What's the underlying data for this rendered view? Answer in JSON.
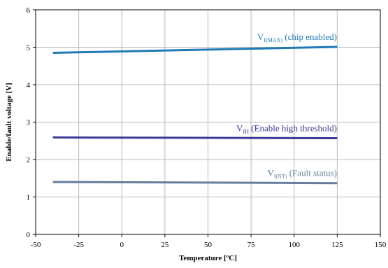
{
  "chart_data": {
    "type": "line",
    "title": "",
    "xlabel": "Temperature [ºC]",
    "ylabel": "Enable/fault voltage [V]",
    "xlim": [
      -50,
      150
    ],
    "ylim": [
      0,
      6
    ],
    "xticks": [
      -50,
      -25,
      0,
      25,
      50,
      75,
      100,
      125,
      150
    ],
    "yticks": [
      0,
      1,
      2,
      3,
      4,
      5,
      6
    ],
    "grid": true,
    "legend": "inline labels",
    "series": [
      {
        "name": "V_I(MAX) (chip enabled)",
        "label": {
          "main": "V",
          "sub": "I(MAX)",
          "rest": " (chip enabled)"
        },
        "color": "#1f7ab5",
        "x": [
          -40,
          125
        ],
        "y": [
          4.85,
          5.01
        ]
      },
      {
        "name": "V_IH (Enable high threshold)",
        "label": {
          "main": "V",
          "sub": "IH",
          "rest": " (Enable high threshold)"
        },
        "color": "#3d3a99",
        "x": [
          -40,
          125
        ],
        "y": [
          2.59,
          2.57
        ]
      },
      {
        "name": "V_I(NT) (Fault status)",
        "label": {
          "main": "V",
          "sub": "I(NT)",
          "rest": " (Fault status)"
        },
        "color": "#667f9e",
        "x": [
          -40,
          125
        ],
        "y": [
          1.4,
          1.37
        ]
      }
    ]
  }
}
